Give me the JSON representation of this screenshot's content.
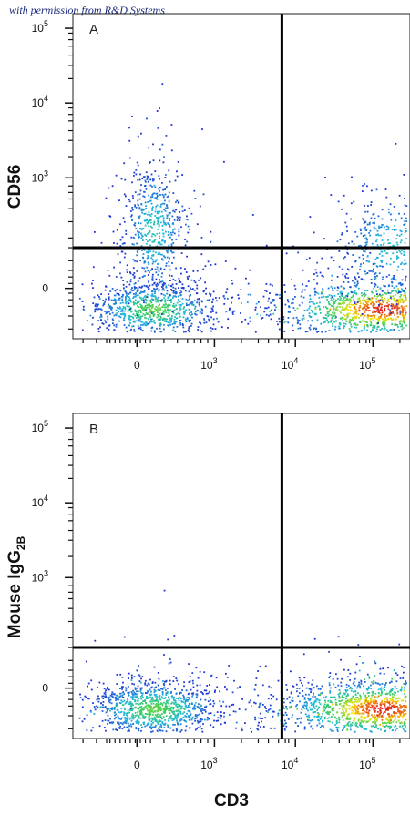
{
  "credit": "with permission from R&D Systems",
  "chart_data": [
    {
      "type": "scatter",
      "panel": "A",
      "xlabel": "CD3",
      "ylabel": "CD56",
      "x_ticks": [
        {
          "base": "0",
          "exp": ""
        },
        {
          "base": "10",
          "exp": "3"
        },
        {
          "base": "10",
          "exp": "4"
        },
        {
          "base": "10",
          "exp": "5"
        }
      ],
      "y_ticks": [
        {
          "base": "0",
          "exp": ""
        },
        {
          "base": "10",
          "exp": "3"
        },
        {
          "base": "10",
          "exp": "4"
        },
        {
          "base": "10",
          "exp": "5"
        }
      ],
      "gate_x": 0.62,
      "gate_y": 0.28,
      "populations": [
        {
          "name": "",
          "cx": 0.24,
          "cy": 0.09,
          "sx": 0.1,
          "sy": 0.045,
          "n": 900,
          "peak": 0.55
        },
        {
          "name": "",
          "cx": 0.24,
          "cy": 0.33,
          "sx": 0.05,
          "sy": 0.11,
          "n": 600,
          "peak": 0.35
        },
        {
          "name": "",
          "cx": 0.92,
          "cy": 0.09,
          "sx": 0.17,
          "sy": 0.05,
          "n": 1500,
          "peak": 1.0
        },
        {
          "name": "",
          "cx": 0.95,
          "cy": 0.28,
          "sx": 0.1,
          "sy": 0.09,
          "n": 500,
          "peak": 0.3
        }
      ]
    },
    {
      "type": "scatter",
      "panel": "B",
      "xlabel": "CD3",
      "ylabel": "Mouse IgG2B",
      "ylabel_main": "Mouse IgG",
      "ylabel_sub": "2B",
      "x_ticks": [
        {
          "base": "0",
          "exp": ""
        },
        {
          "base": "10",
          "exp": "3"
        },
        {
          "base": "10",
          "exp": "4"
        },
        {
          "base": "10",
          "exp": "5"
        }
      ],
      "y_ticks": [
        {
          "base": "0",
          "exp": ""
        },
        {
          "base": "10",
          "exp": "3"
        },
        {
          "base": "10",
          "exp": "4"
        },
        {
          "base": "10",
          "exp": "5"
        }
      ],
      "gate_x": 0.62,
      "gate_y": 0.28,
      "populations": [
        {
          "name": "",
          "cx": 0.24,
          "cy": 0.09,
          "sx": 0.1,
          "sy": 0.045,
          "n": 1100,
          "peak": 0.55
        },
        {
          "name": "",
          "cx": 0.92,
          "cy": 0.09,
          "sx": 0.17,
          "sy": 0.05,
          "n": 1700,
          "peak": 1.0
        }
      ]
    }
  ],
  "colors": {
    "low": "#1f2fd0",
    "mid_low": "#1fb8e0",
    "mid": "#3fcf5a",
    "mid_high": "#f5e400",
    "high": "#e51a1a"
  }
}
